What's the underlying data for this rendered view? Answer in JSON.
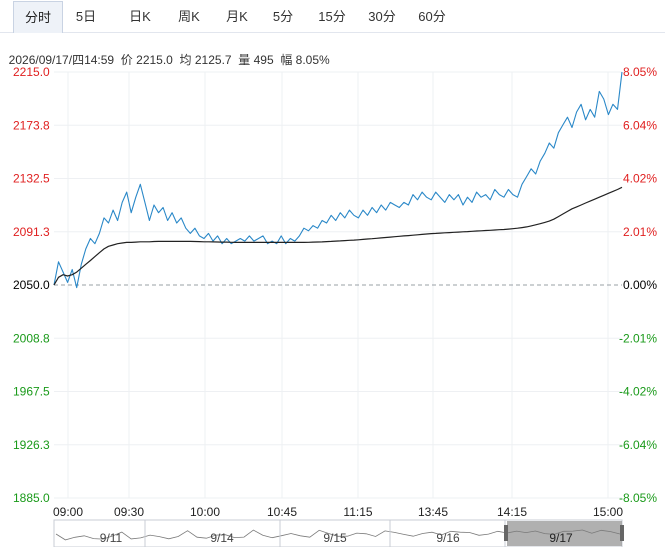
{
  "tabs": [
    {
      "label": "分时",
      "active": true
    },
    {
      "label": "5日",
      "active": false
    },
    {
      "label": "日K",
      "active": false
    },
    {
      "label": "周K",
      "active": false
    },
    {
      "label": "月K",
      "active": false
    },
    {
      "label": "5分",
      "active": false
    },
    {
      "label": "15分",
      "active": false
    },
    {
      "label": "30分",
      "active": false
    },
    {
      "label": "60分",
      "active": false
    }
  ],
  "info": {
    "datetime": "2026/09/17/四14:59",
    "price_label": "价",
    "price": "2215.0",
    "avg_label": "均",
    "avg": "2125.7",
    "vol_label": "量",
    "vol": "495",
    "range_label": "幅",
    "range": "8.05%"
  },
  "colors": {
    "price_line": "#2a88c8",
    "avg_line": "#222222",
    "up": "#e02020",
    "down": "#1a9a1a",
    "neutral": "#000000",
    "grid": "#eef0f3"
  },
  "chart_data": {
    "type": "line",
    "title": "",
    "xlabel": "",
    "ylabel": "",
    "ylim": [
      1885.0,
      2215.0
    ],
    "base_price": 2050.0,
    "y_ticks": [
      "2215.0",
      "2173.8",
      "2132.5",
      "2091.3",
      "2050.0",
      "2008.8",
      "1967.5",
      "1926.3",
      "1885.0"
    ],
    "pct_ticks": [
      "8.05%",
      "6.04%",
      "4.02%",
      "2.01%",
      "0.00%",
      "-2.01%",
      "-4.02%",
      "-6.04%",
      "-8.05%"
    ],
    "x_ticks": [
      "09:00",
      "09:30",
      "10:00",
      "10:45",
      "11:15",
      "13:45",
      "14:15",
      "15:00"
    ],
    "series": [
      {
        "values": [
          2050,
          2068,
          2060,
          2052,
          2062,
          2048,
          2066,
          2078,
          2086,
          2082,
          2090,
          2102,
          2098,
          2108,
          2100,
          2114,
          2122,
          2106,
          2118,
          2128,
          2114,
          2100,
          2112,
          2106,
          2110,
          2100,
          2106,
          2098,
          2102,
          2094,
          2090,
          2094,
          2088,
          2086,
          2090,
          2084,
          2088,
          2082,
          2086,
          2082,
          2084,
          2086,
          2084,
          2088,
          2084,
          2086,
          2088,
          2082,
          2084,
          2082,
          2088,
          2082,
          2086,
          2084,
          2088,
          2094,
          2092,
          2096,
          2094,
          2100,
          2098,
          2104,
          2100,
          2106,
          2102,
          2108,
          2104,
          2102,
          2108,
          2104,
          2110,
          2106,
          2112,
          2108,
          2114,
          2112,
          2110,
          2114,
          2112,
          2120,
          2116,
          2122,
          2118,
          2116,
          2122,
          2118,
          2114,
          2120,
          2116,
          2120,
          2112,
          2118,
          2114,
          2122,
          2118,
          2120,
          2116,
          2124,
          2120,
          2118,
          2124,
          2120,
          2118,
          2128,
          2134,
          2140,
          2136,
          2146,
          2152,
          2160,
          2156,
          2168,
          2174,
          2180,
          2172,
          2184,
          2190,
          2178,
          2186,
          2180,
          2200,
          2194,
          2182,
          2190,
          2186,
          2215
        ]
      },
      {
        "values": [
          2050,
          2056,
          2058,
          2057,
          2058,
          2060,
          2063,
          2066,
          2069,
          2072,
          2075,
          2078,
          2080,
          2081,
          2082,
          2082.5,
          2083,
          2083,
          2083.2,
          2083.5,
          2083.5,
          2083.5,
          2083.7,
          2083.8,
          2083.8,
          2083.8,
          2083.8,
          2083.8,
          2083.8,
          2083.8,
          2083.8,
          2083.7,
          2083.6,
          2083.5,
          2083.5,
          2083.4,
          2083.3,
          2083.2,
          2083.2,
          2083.1,
          2083,
          2083,
          2083,
          2083,
          2083,
          2083,
          2083,
          2083,
          2083,
          2083,
          2083,
          2083,
          2083,
          2083,
          2083,
          2083,
          2083.1,
          2083.2,
          2083.3,
          2083.4,
          2083.6,
          2083.8,
          2084,
          2084.2,
          2084.4,
          2084.6,
          2084.8,
          2085,
          2085.3,
          2085.6,
          2085.9,
          2086.2,
          2086.5,
          2086.8,
          2087.1,
          2087.4,
          2087.7,
          2088,
          2088.3,
          2088.6,
          2088.9,
          2089.2,
          2089.5,
          2089.8,
          2090,
          2090.2,
          2090.4,
          2090.6,
          2090.8,
          2091,
          2091.2,
          2091.4,
          2091.6,
          2091.8,
          2092,
          2092.2,
          2092.4,
          2092.6,
          2092.8,
          2093,
          2093.3,
          2093.6,
          2094,
          2094.5,
          2095,
          2095.8,
          2096.6,
          2097.5,
          2098.5,
          2099.5,
          2101,
          2103,
          2105,
          2107,
          2109,
          2110.5,
          2112,
          2113.5,
          2115,
          2116.5,
          2118,
          2119.5,
          2121,
          2122.5,
          2124,
          2125.7
        ]
      }
    ],
    "navigator": {
      "dates": [
        "9/11",
        "9/14",
        "9/15",
        "9/16",
        "9/17"
      ]
    }
  }
}
